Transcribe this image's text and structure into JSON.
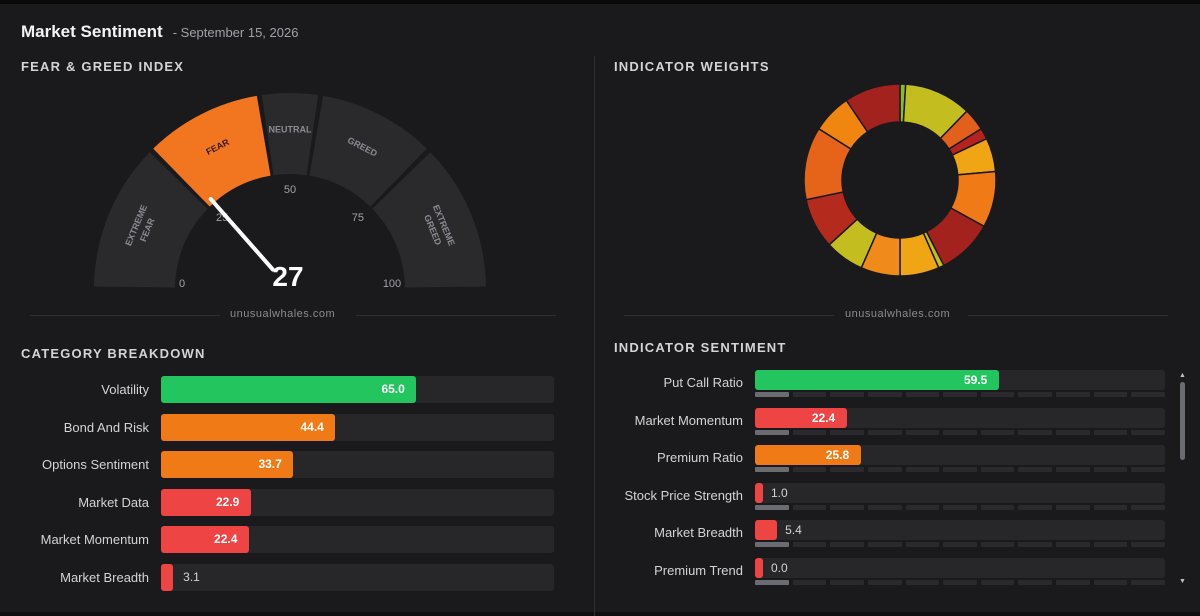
{
  "header": {
    "title": "Market Sentiment",
    "date": "- September 15, 2026"
  },
  "fear_greed": {
    "section_title": "FEAR & GREED INDEX",
    "value": 27,
    "value_text": "27",
    "zones": [
      {
        "name": "EXTREME FEAR",
        "l1": "EXTREME",
        "l2": "FEAR",
        "from": 0,
        "to": 25,
        "active": false
      },
      {
        "name": "FEAR",
        "l1": "FEAR",
        "l2": "",
        "from": 25,
        "to": 45,
        "active": true
      },
      {
        "name": "NEUTRAL",
        "l1": "NEUTRAL",
        "l2": "",
        "from": 45,
        "to": 55,
        "active": false
      },
      {
        "name": "GREED",
        "l1": "GREED",
        "l2": "",
        "from": 55,
        "to": 75,
        "active": false
      },
      {
        "name": "EXTREME GREED",
        "l1": "EXTREME",
        "l2": "GREED",
        "from": 75,
        "to": 100,
        "active": false
      }
    ],
    "ticks": [
      "0",
      "25",
      "50",
      "75",
      "100"
    ],
    "watermark": "unusualwhales.com",
    "colors": {
      "active": "#f27620",
      "inactive": "#2a2a2d",
      "needle": "#ffffff"
    }
  },
  "indicator_weights": {
    "section_title": "INDICATOR WEIGHTS",
    "watermark": "unusualwhales.com"
  },
  "chart_data": {
    "type": "pie",
    "slices": [
      {
        "value": 1,
        "color": "#7fbf2e"
      },
      {
        "value": 12,
        "color": "#c4bd1f"
      },
      {
        "value": 4,
        "color": "#e25f1c"
      },
      {
        "value": 2,
        "color": "#b5231f"
      },
      {
        "value": 6,
        "color": "#f0a514"
      },
      {
        "value": 10,
        "color": "#f07b16"
      },
      {
        "value": 10,
        "color": "#a3221d"
      },
      {
        "value": 1,
        "color": "#c4bd1f"
      },
      {
        "value": 7,
        "color": "#f0a514"
      },
      {
        "value": 7,
        "color": "#f08a18"
      },
      {
        "value": 7,
        "color": "#c4bd1f"
      },
      {
        "value": 9,
        "color": "#b42a1c"
      },
      {
        "value": 13,
        "color": "#e5641a"
      },
      {
        "value": 7,
        "color": "#f0860f"
      },
      {
        "value": 10,
        "color": "#a3221d"
      }
    ]
  },
  "category_breakdown": {
    "section_title": "CATEGORY BREAKDOWN",
    "rows": [
      {
        "label": "Volatility",
        "value": 65.0,
        "value_text": "65.0",
        "color": "#22c55e"
      },
      {
        "label": "Bond And Risk",
        "value": 44.4,
        "value_text": "44.4",
        "color": "#f07b16"
      },
      {
        "label": "Options Sentiment",
        "value": 33.7,
        "value_text": "33.7",
        "color": "#f07b16"
      },
      {
        "label": "Market Data",
        "value": 22.9,
        "value_text": "22.9",
        "color": "#ef4444"
      },
      {
        "label": "Market Momentum",
        "value": 22.4,
        "value_text": "22.4",
        "color": "#ef4444"
      },
      {
        "label": "Market Breadth",
        "value": 3.1,
        "value_text": "3.1",
        "color": "#ef4444"
      }
    ]
  },
  "indicator_sentiment": {
    "section_title": "INDICATOR SENTIMENT",
    "rows": [
      {
        "label": "Put Call Ratio",
        "value": 59.5,
        "value_text": "59.5",
        "color": "#22c55e",
        "weight": 0.09
      },
      {
        "label": "Market Momentum",
        "value": 22.4,
        "value_text": "22.4",
        "color": "#ef4444",
        "weight": 0.09
      },
      {
        "label": "Premium Ratio",
        "value": 25.8,
        "value_text": "25.8",
        "color": "#f07b16",
        "weight": 0.09
      },
      {
        "label": "Stock Price Strength",
        "value": 1.0,
        "value_text": "1.0",
        "color": "#ef4444",
        "weight": 0.09
      },
      {
        "label": "Market Breadth",
        "value": 5.4,
        "value_text": "5.4",
        "color": "#ef4444",
        "weight": 0.09
      },
      {
        "label": "Premium Trend",
        "value": 0.0,
        "value_text": "0.0",
        "color": "#ef4444",
        "weight": 0.09
      }
    ]
  }
}
